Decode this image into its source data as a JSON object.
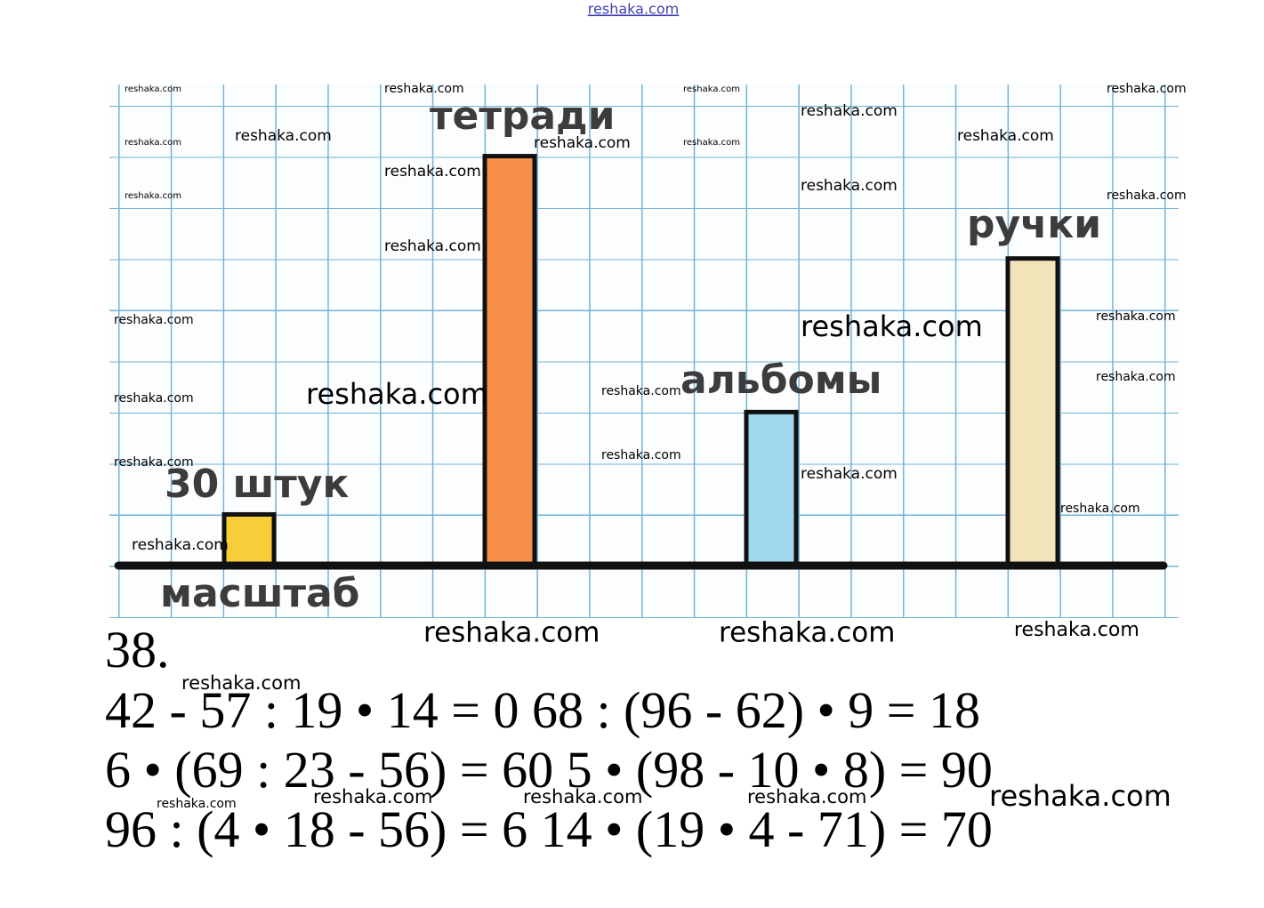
{
  "header": {
    "site": "reshaka.com"
  },
  "chart_data": {
    "type": "bar",
    "categories": [
      "масштаб",
      "тетради",
      "альбомы",
      "ручки"
    ],
    "values": [
      30,
      240,
      90,
      180
    ],
    "value_labels": [
      "30 штук",
      null,
      null,
      null
    ],
    "colors": [
      "#f7cd3a",
      "#f7914a",
      "#9fd8ee",
      "#f2e3b8"
    ],
    "ylim": [
      0,
      282
    ],
    "grid": true
  },
  "exercise": {
    "number": "38.",
    "lines": [
      "42 - 57 : 19 • 14 = 0 68 : (96 - 62) • 9 = 18",
      "6 • (69 : 23 - 56) = 60 5 • (98 - 10 • 8) = 90",
      "96 : (4 • 18 - 56) = 6 14 • (19 • 4 - 71) = 70"
    ]
  },
  "watermarks": [
    "reshaka.com",
    "reshaka.com",
    "reshaka.com",
    "reshaka.com",
    "reshaka.com",
    "reshaka.com",
    "reshaka.com",
    "reshaka.com",
    "reshaka.com",
    "reshaka.com",
    "reshaka.com",
    "reshaka.com",
    "reshaka.com",
    "reshaka.com",
    "reshaka.com",
    "reshaka.com",
    "reshaka.com",
    "reshaka.com",
    "reshaka.com",
    "reshaka.com",
    "reshaka.com",
    "reshaka.com",
    "reshaka.com",
    "reshaka.com",
    "reshaka.com",
    "reshaka.com",
    "reshaka.com",
    "reshaka.com",
    "reshaka.com",
    "reshaka.com",
    "reshaka.com",
    "reshaka.com",
    "reshaka.com",
    "reshaka.com",
    "reshaka.com",
    "reshaka.com"
  ]
}
